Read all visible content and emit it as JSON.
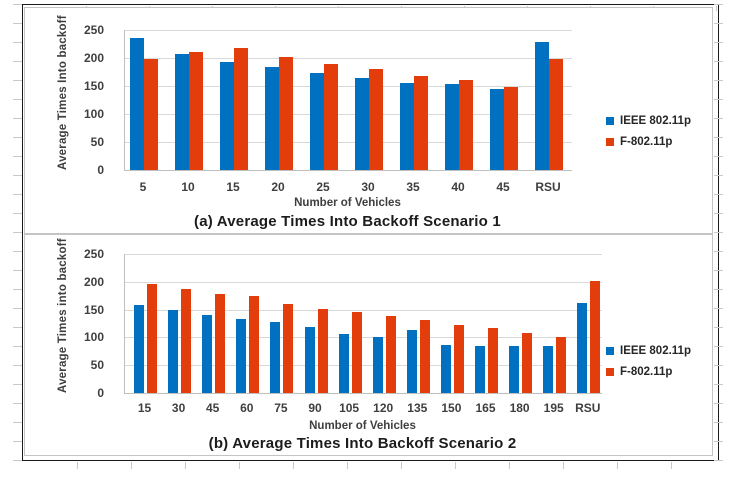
{
  "figure": {
    "description": "Two stacked clustered bar charts comparing IEEE 802.11p and F-802.11p average times into backoff"
  },
  "chart_data": [
    {
      "type": "bar",
      "title": "(a) Average Times Into Backoff Scenario 1",
      "xlabel": "Number of Vehicles",
      "ylabel": "Average Times Into backoff",
      "categories": [
        "5",
        "10",
        "15",
        "20",
        "25",
        "30",
        "35",
        "40",
        "45",
        "RSU"
      ],
      "series": [
        {
          "name": "IEEE 802.11p",
          "color": "#0070C0",
          "values": [
            235,
            207,
            193,
            184,
            174,
            165,
            156,
            153,
            145,
            228
          ]
        },
        {
          "name": "F-802.11p",
          "color": "#E43D0C",
          "values": [
            199,
            210,
            217,
            202,
            189,
            180,
            168,
            160,
            149,
            199
          ]
        }
      ],
      "ylim": [
        0,
        250
      ],
      "yticks": [
        0,
        50,
        100,
        150,
        200,
        250
      ],
      "grid": true,
      "legend_position": "right"
    },
    {
      "type": "bar",
      "title": "(b) Average Times Into Backoff Scenario 2",
      "xlabel": "Number of Vehicles",
      "ylabel": "Average Times into backoff",
      "categories": [
        "15",
        "30",
        "45",
        "60",
        "75",
        "90",
        "105",
        "120",
        "135",
        "150",
        "165",
        "180",
        "195",
        "RSU"
      ],
      "series": [
        {
          "name": "IEEE 802.11p",
          "color": "#0070C0",
          "values": [
            159,
            149,
            141,
            134,
            127,
            119,
            107,
            101,
            113,
            86,
            84,
            84,
            84,
            162
          ]
        },
        {
          "name": "F-802.11p",
          "color": "#E43D0C",
          "values": [
            196,
            187,
            178,
            174,
            160,
            152,
            146,
            138,
            131,
            123,
            117,
            108,
            100,
            201
          ]
        }
      ],
      "ylim": [
        0,
        250
      ],
      "yticks": [
        0,
        50,
        100,
        150,
        200,
        250
      ],
      "grid": true,
      "legend_position": "right"
    }
  ]
}
